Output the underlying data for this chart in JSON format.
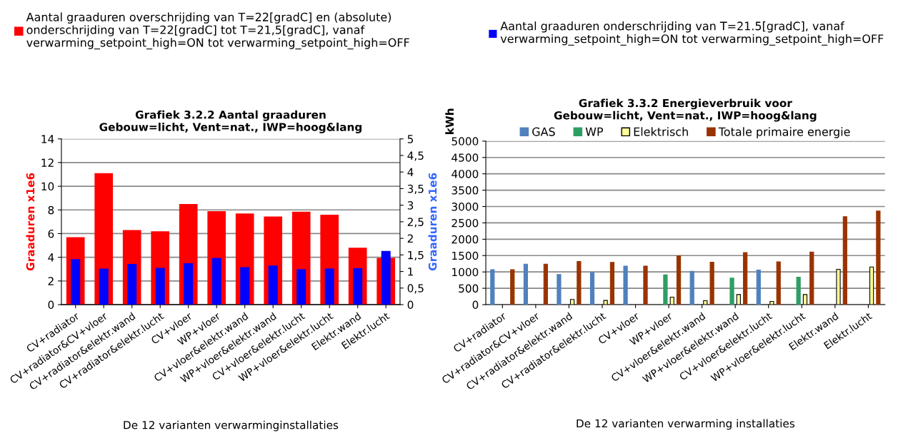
{
  "chart_data": [
    {
      "type": "bar",
      "title": "Grafiek 3.2.2 Aantal graaduren",
      "subtitle": "Gebouw=licht, Vent=nat., IWP=hoog&lang",
      "xlabel": "De 12 varianten verwarminginstallaties",
      "ylabel": "Graaduren x1e6",
      "y2label": "Graaduren x1e6",
      "categories": [
        "CV+radiator",
        "CV+radiator&CV+vloer",
        "CV+radiator&elektr.wand",
        "CV+radiator&elektr.lucht",
        "CV+vloer",
        "WP+vloer",
        "CV+vloer&elektr.wand",
        "WP+vloer&elektr.wand",
        "CV+vloer&elektr.lucht",
        "WP+vloer&elektr.lucht",
        "Elektr.wand",
        "Elektr.lucht"
      ],
      "series": [
        {
          "name": "Aantal graaduren overschrijding van T=22[gradC] en (absolute) onderschrijding van T=22[gradC] tot T=21,5[gradC], vanaf verwarming_setpoint_high=ON tot verwarming_setpoint_high=OFF",
          "color": "#ff0000",
          "values": [
            5.7,
            11.1,
            6.3,
            6.2,
            8.5,
            7.9,
            7.7,
            7.45,
            7.85,
            7.6,
            4.8,
            3.95
          ]
        },
        {
          "name": "Aantal graaduren onderschrijding van T=21.5[gradC], vanaf verwarming_setpoint_high=ON tot verwarming_setpoint_high=OFF",
          "color": "#0000ff",
          "axis": "y2",
          "values": [
            1.37,
            1.09,
            1.23,
            1.11,
            1.25,
            1.41,
            1.13,
            1.18,
            1.07,
            1.09,
            1.1,
            1.62
          ]
        }
      ],
      "ylim": [
        0,
        14
      ],
      "yticks": [
        0,
        2,
        4,
        6,
        8,
        10,
        12,
        14
      ],
      "y2lim": [
        0,
        5
      ],
      "y2ticks": [
        0,
        {
          "value": 0.5,
          "label": "0,5"
        },
        1,
        {
          "value": 1.5,
          "label": "1,5"
        },
        2,
        {
          "value": 2.5,
          "label": "2,5"
        },
        3,
        {
          "value": 3.5,
          "label": "3,5"
        },
        4,
        {
          "value": 4.5,
          "label": "4,5"
        },
        5
      ],
      "grid": "y",
      "legend": "top"
    },
    {
      "type": "bar",
      "title": "Grafiek 3.3.2 Energieverbruik voor",
      "subtitle": "Gebouw=licht, Vent=nat., IWP=hoog&lang",
      "xlabel": "De 12 varianten verwarming installaties",
      "ylabel": "kWh",
      "categories": [
        "CV+radiator",
        "CV+radiator&CV+vloer",
        "CV+radiator&elektr.wand",
        "CV+radiator&elektr.lucht",
        "CV+vloer",
        "WP+vloer",
        "CV+vloer&elektr.wand",
        "WP+vloer&elektr.wand",
        "CV+vloer&elektr.lucht",
        "WP+vloer&elektr.lucht",
        "Elektr.wand",
        "Elektr.lucht"
      ],
      "series": [
        {
          "name": "GAS",
          "color": "#4f81bd",
          "values": [
            1070,
            1240,
            920,
            980,
            1180,
            null,
            1020,
            null,
            1060,
            null,
            null,
            null
          ]
        },
        {
          "name": "WP",
          "color": "#2e9e64",
          "values": [
            null,
            null,
            null,
            null,
            null,
            910,
            null,
            810,
            null,
            840,
            null,
            null
          ]
        },
        {
          "name": "Elektrisch",
          "color": "#ffff99",
          "values": [
            null,
            null,
            160,
            130,
            null,
            230,
            120,
            310,
            100,
            310,
            1080,
            1150
          ]
        },
        {
          "name": "Totale primaire energie",
          "color": "#993300",
          "values": [
            1070,
            1240,
            1320,
            1290,
            1180,
            1490,
            1300,
            1590,
            1310,
            1610,
            2690,
            2860
          ]
        }
      ],
      "ylim": [
        0,
        5000
      ],
      "yticks": [
        0,
        500,
        1000,
        1500,
        2000,
        2500,
        3000,
        3500,
        4000,
        4500,
        5000
      ],
      "grid": "y",
      "legend": "top"
    }
  ]
}
